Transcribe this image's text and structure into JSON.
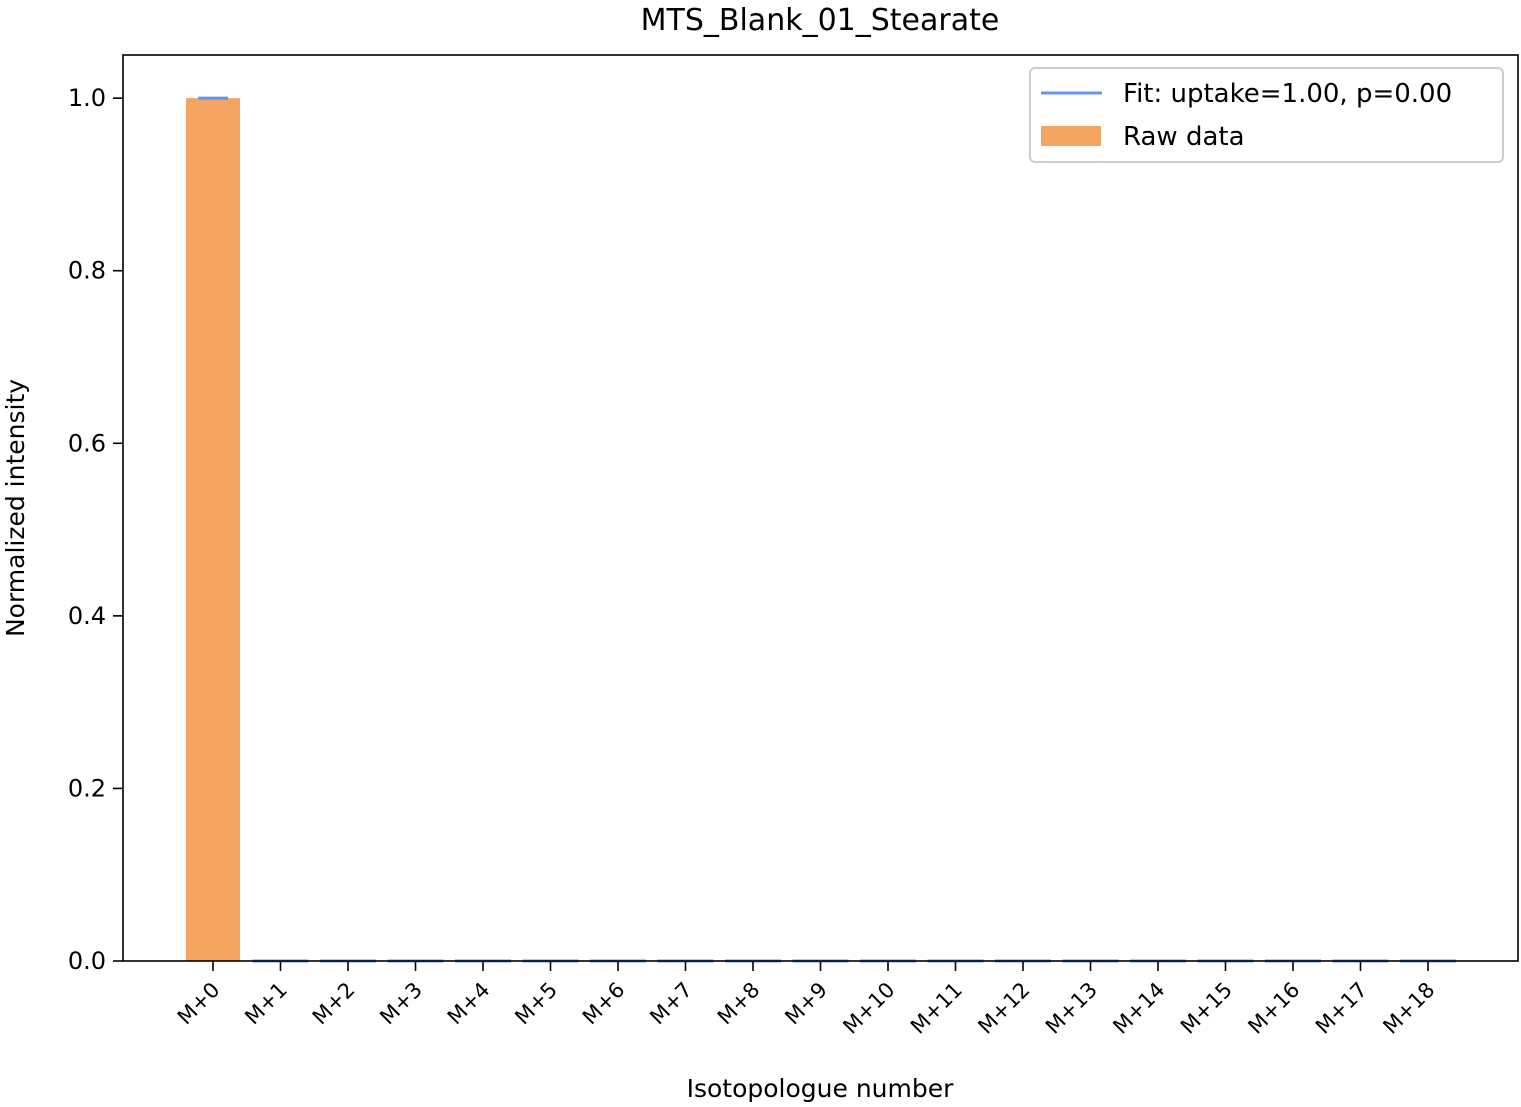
{
  "chart_data": {
    "type": "bar",
    "title": "MTS_Blank_01_Stearate",
    "xlabel": "Isotopologue number",
    "ylabel": "Normalized intensity",
    "ylim": [
      0,
      1.05
    ],
    "yticks": [
      "0.0",
      "0.2",
      "0.4",
      "0.6",
      "0.8",
      "1.0"
    ],
    "categories": [
      "M+0",
      "M+1",
      "M+2",
      "M+3",
      "M+4",
      "M+5",
      "M+6",
      "M+7",
      "M+8",
      "M+9",
      "M+10",
      "M+11",
      "M+12",
      "M+13",
      "M+14",
      "M+15",
      "M+16",
      "M+17",
      "M+18"
    ],
    "grid": false,
    "legend_position": "top-right",
    "series": [
      {
        "name": "Raw data",
        "kind": "bar",
        "color": "#F4A460",
        "values": [
          1.0,
          0,
          0,
          0,
          0,
          0,
          0,
          0,
          0,
          0,
          0,
          0,
          0,
          0,
          0,
          0,
          0,
          0,
          0
        ]
      },
      {
        "name": "Fit: uptake=1.00, p=0.00",
        "kind": "line",
        "color": "#6495ED",
        "values": [
          1.0,
          0,
          0,
          0,
          0,
          0,
          0,
          0,
          0,
          0,
          0,
          0,
          0,
          0,
          0,
          0,
          0,
          0,
          0
        ]
      }
    ]
  }
}
